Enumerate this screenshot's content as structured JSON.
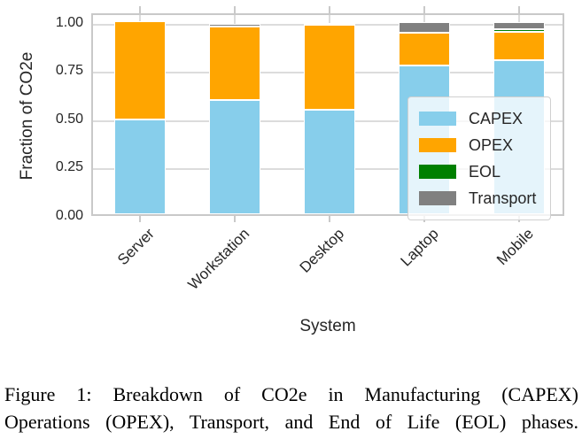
{
  "figure": {
    "caption_line1": "Figure 1: Breakdown of CO2e in Manufacturing (CAPEX)",
    "caption_line2": "Operations (OPEX), Transport, and End of Life (EOL) phases."
  },
  "chart_data": {
    "type": "bar",
    "stacked": true,
    "title": "",
    "xlabel": "System",
    "ylabel": "Fraction of CO2e",
    "categories": [
      "Server",
      "Workstation",
      "Desktop",
      "Laptop",
      "Mobile"
    ],
    "series": [
      {
        "name": "CAPEX",
        "color": "#87CEEB",
        "values": [
          0.49,
          0.59,
          0.54,
          0.77,
          0.8
        ]
      },
      {
        "name": "OPEX",
        "color": "#FFA500",
        "values": [
          0.51,
          0.38,
          0.44,
          0.17,
          0.145
        ]
      },
      {
        "name": "EOL",
        "color": "#008000",
        "values": [
          0.0,
          0.0,
          0.012,
          0.0,
          0.012
        ]
      },
      {
        "name": "Transport",
        "color": "#808080",
        "values": [
          0.0,
          0.015,
          0.0,
          0.055,
          0.04
        ]
      }
    ],
    "yticks": [
      {
        "value": 0.0,
        "label": "0.00"
      },
      {
        "value": 0.25,
        "label": "0.25"
      },
      {
        "value": 0.5,
        "label": "0.50"
      },
      {
        "value": 0.75,
        "label": "0.75"
      },
      {
        "value": 1.0,
        "label": "1.00"
      }
    ],
    "ylim": [
      0,
      1.05
    ],
    "grid": true,
    "legend_position": "center-right"
  }
}
